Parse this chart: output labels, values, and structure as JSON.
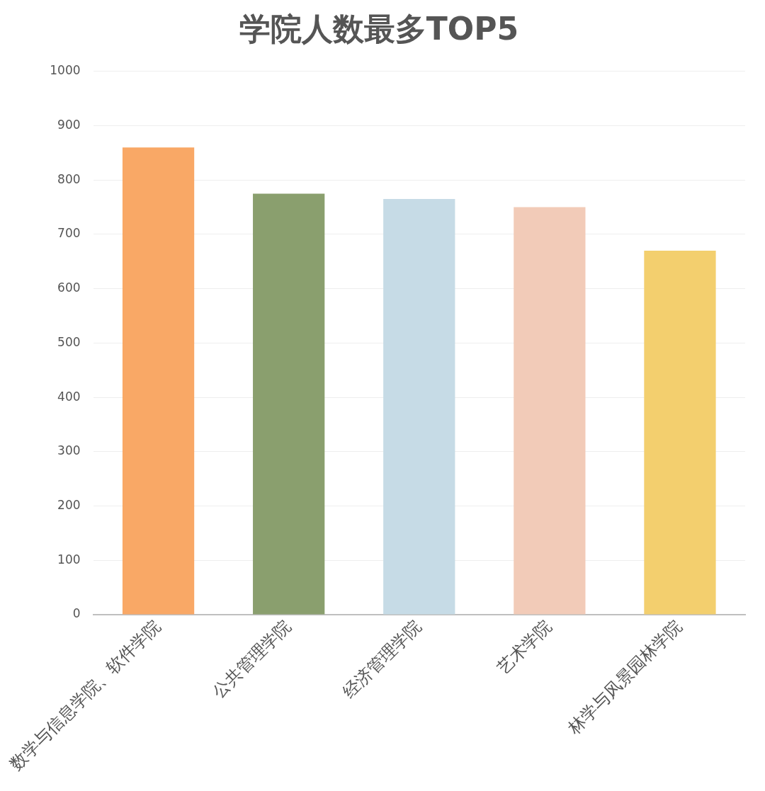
{
  "chart_data": {
    "type": "bar",
    "title": "学院人数最多TOP5",
    "categories": [
      "数学与信息学院、软件学院",
      "公共管理学院",
      "经济管理学院",
      "艺术学院",
      "林学与风景园林学院"
    ],
    "values": [
      860,
      775,
      765,
      750,
      670
    ],
    "colors": [
      "#f9a866",
      "#8a9f6e",
      "#c6dbe6",
      "#f2cbb8",
      "#f3cf6e"
    ],
    "ylim": [
      0,
      1000
    ],
    "yticks": [
      0,
      100,
      200,
      300,
      400,
      500,
      600,
      700,
      800,
      900,
      1000
    ],
    "grid": "y",
    "legend": false
  }
}
